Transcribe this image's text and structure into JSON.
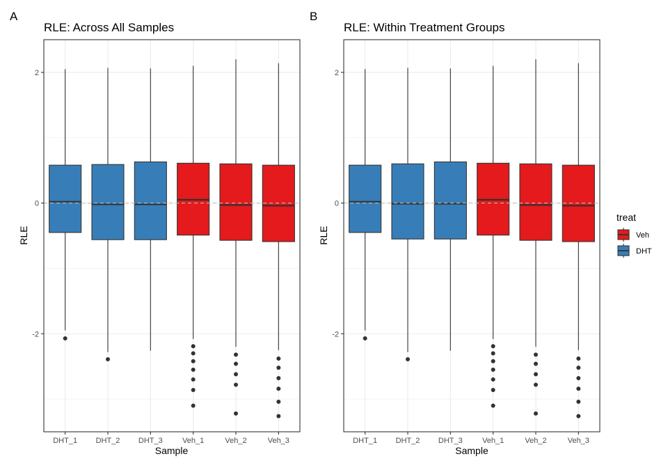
{
  "figure": {
    "legend_title": "treat",
    "legend_items": [
      {
        "label": "Veh",
        "color": "#E41A1C"
      },
      {
        "label": "DHT",
        "color": "#377EB8"
      }
    ]
  },
  "chart_data": [
    {
      "type": "box",
      "tag": "A",
      "title": "RLE: Across All Samples",
      "xlabel": "Sample",
      "ylabel": "RLE",
      "ylim": [
        -3.5,
        2.5
      ],
      "yticks": [
        -2,
        0,
        2
      ],
      "ytick_labels": [
        "-2",
        "0",
        "2"
      ],
      "reference_line_y": 0,
      "grid": true,
      "boxes": [
        {
          "category": "DHT_1",
          "group": "DHT",
          "lower_whisker": -1.95,
          "q1": -0.45,
          "median": 0.02,
          "q3": 0.58,
          "upper_whisker": 2.05,
          "outliers": [
            -2.07
          ]
        },
        {
          "category": "DHT_2",
          "group": "DHT",
          "lower_whisker": -2.28,
          "q1": -0.56,
          "median": -0.02,
          "q3": 0.59,
          "upper_whisker": 2.07,
          "outliers": [
            -2.39
          ]
        },
        {
          "category": "DHT_3",
          "group": "DHT",
          "lower_whisker": -2.26,
          "q1": -0.56,
          "median": -0.02,
          "q3": 0.63,
          "upper_whisker": 2.06,
          "outliers": []
        },
        {
          "category": "Veh_1",
          "group": "Veh",
          "lower_whisker": -2.08,
          "q1": -0.49,
          "median": 0.05,
          "q3": 0.61,
          "upper_whisker": 2.1,
          "outliers": [
            -2.19,
            -2.3,
            -2.42,
            -2.55,
            -2.7,
            -2.86,
            -3.1
          ]
        },
        {
          "category": "Veh_2",
          "group": "Veh",
          "lower_whisker": -2.2,
          "q1": -0.57,
          "median": -0.03,
          "q3": 0.6,
          "upper_whisker": 2.2,
          "outliers": [
            -2.32,
            -2.46,
            -2.62,
            -2.78,
            -3.22
          ]
        },
        {
          "category": "Veh_3",
          "group": "Veh",
          "lower_whisker": -2.25,
          "q1": -0.59,
          "median": -0.04,
          "q3": 0.58,
          "upper_whisker": 2.14,
          "outliers": [
            -2.38,
            -2.52,
            -2.68,
            -2.84,
            -3.04,
            -3.26
          ]
        }
      ]
    },
    {
      "type": "box",
      "tag": "B",
      "title": "RLE: Within Treatment Groups",
      "xlabel": "Sample",
      "ylabel": "RLE",
      "ylim": [
        -3.5,
        2.5
      ],
      "yticks": [
        -2,
        0,
        2
      ],
      "ytick_labels": [
        "-2",
        "0",
        "2"
      ],
      "reference_line_y": 0,
      "grid": true,
      "boxes": [
        {
          "category": "DHT_1",
          "group": "DHT",
          "lower_whisker": -1.95,
          "q1": -0.45,
          "median": 0.02,
          "q3": 0.58,
          "upper_whisker": 2.05,
          "outliers": [
            -2.07
          ]
        },
        {
          "category": "DHT_2",
          "group": "DHT",
          "lower_whisker": -2.28,
          "q1": -0.55,
          "median": -0.01,
          "q3": 0.6,
          "upper_whisker": 2.07,
          "outliers": [
            -2.39
          ]
        },
        {
          "category": "DHT_3",
          "group": "DHT",
          "lower_whisker": -2.26,
          "q1": -0.55,
          "median": -0.01,
          "q3": 0.63,
          "upper_whisker": 2.06,
          "outliers": []
        },
        {
          "category": "Veh_1",
          "group": "Veh",
          "lower_whisker": -2.08,
          "q1": -0.49,
          "median": 0.05,
          "q3": 0.61,
          "upper_whisker": 2.1,
          "outliers": [
            -2.19,
            -2.3,
            -2.42,
            -2.55,
            -2.7,
            -2.86,
            -3.1
          ]
        },
        {
          "category": "Veh_2",
          "group": "Veh",
          "lower_whisker": -2.2,
          "q1": -0.57,
          "median": -0.03,
          "q3": 0.6,
          "upper_whisker": 2.2,
          "outliers": [
            -2.32,
            -2.46,
            -2.62,
            -2.78,
            -3.22
          ]
        },
        {
          "category": "Veh_3",
          "group": "Veh",
          "lower_whisker": -2.25,
          "q1": -0.59,
          "median": -0.04,
          "q3": 0.58,
          "upper_whisker": 2.14,
          "outliers": [
            -2.38,
            -2.52,
            -2.68,
            -2.84,
            -3.04,
            -3.26
          ]
        }
      ]
    }
  ]
}
